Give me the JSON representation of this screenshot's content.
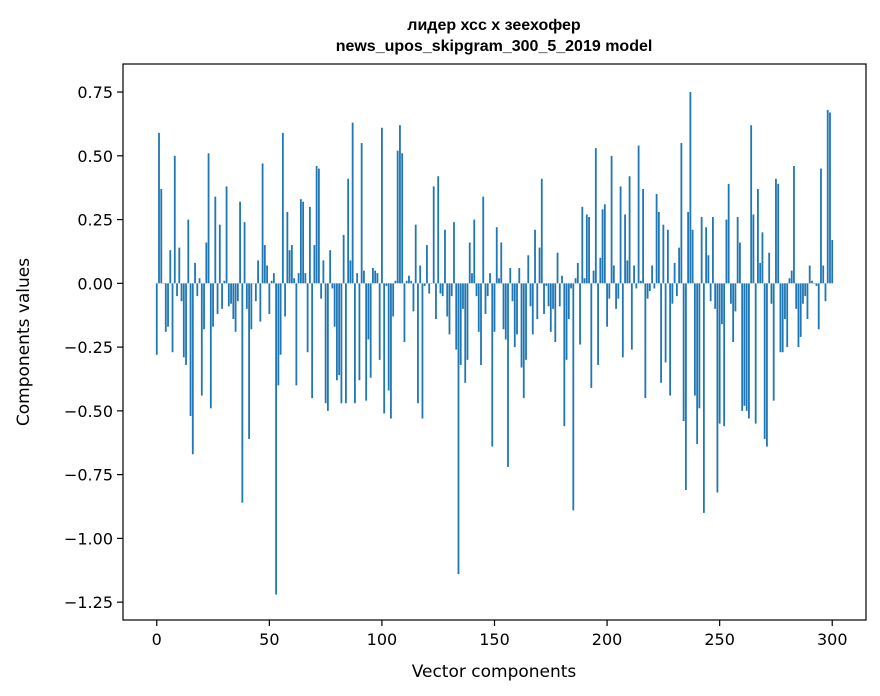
{
  "chart_data": {
    "type": "bar",
    "title": "лидер хсс х зеехофер",
    "subtitle": "news_upos_skipgram_300_5_2019 model",
    "xlabel": "Vector components",
    "ylabel": "Components values",
    "xlim": [
      -15,
      315
    ],
    "ylim": [
      -1.32,
      0.86
    ],
    "xticks": [
      0,
      50,
      100,
      150,
      200,
      250,
      300
    ],
    "yticks": [
      0.75,
      0.5,
      0.25,
      0.0,
      -0.25,
      -0.5,
      -0.75,
      -1.0,
      -1.25
    ],
    "ytick_labels": [
      "0.75",
      "0.50",
      "0.25",
      "0.00",
      "−0.25",
      "−0.50",
      "−0.75",
      "−1.00",
      "−1.25"
    ],
    "bar_color": "#1f77b4",
    "grid": false,
    "values": [
      -0.28,
      0.59,
      0.37,
      0.0,
      -0.19,
      -0.17,
      0.13,
      -0.27,
      0.5,
      -0.05,
      0.14,
      -0.07,
      -0.29,
      -0.32,
      0.25,
      -0.52,
      -0.67,
      0.08,
      -0.05,
      0.02,
      -0.44,
      -0.18,
      0.16,
      0.51,
      -0.49,
      -0.17,
      0.34,
      -0.12,
      0.23,
      -0.1,
      0.01,
      0.38,
      -0.09,
      -0.08,
      -0.14,
      -0.19,
      -0.07,
      0.32,
      -0.86,
      0.24,
      -0.1,
      -0.61,
      -0.18,
      0.0,
      -0.07,
      0.09,
      -0.15,
      0.47,
      0.15,
      0.07,
      -0.12,
      0.01,
      0.04,
      -1.22,
      -0.4,
      -0.28,
      0.59,
      -0.13,
      0.28,
      0.13,
      0.15,
      0.02,
      -0.4,
      0.04,
      0.33,
      0.32,
      0.04,
      -0.27,
      0.3,
      -0.45,
      0.15,
      0.46,
      0.45,
      -0.06,
      0.09,
      -0.47,
      -0.5,
      0.13,
      -0.02,
      -0.17,
      -0.38,
      -0.36,
      -0.47,
      0.19,
      -0.47,
      0.41,
      0.09,
      0.63,
      -0.47,
      0.04,
      -0.38,
      0.55,
      0.05,
      -0.46,
      -0.22,
      -0.37,
      0.06,
      0.05,
      0.04,
      -0.3,
      0.61,
      -0.51,
      -0.01,
      -0.42,
      -0.53,
      -0.13,
      0.01,
      0.52,
      0.62,
      0.51,
      -0.23,
      0.01,
      0.03,
      0.01,
      -0.11,
      0.23,
      -0.47,
      0.07,
      -0.53,
      -0.01,
      0.15,
      -0.04,
      0.0,
      0.38,
      -0.14,
      0.42,
      -0.04,
      -0.05,
      0.21,
      -0.13,
      -0.2,
      -0.05,
      0.24,
      -0.26,
      -1.14,
      -0.32,
      -0.1,
      -0.39,
      -0.3,
      0.16,
      0.04,
      0.25,
      -0.05,
      -0.19,
      -0.32,
      0.34,
      -0.12,
      -0.05,
      0.04,
      -0.64,
      -0.19,
      0.22,
      0.02,
      0.16,
      -0.18,
      -0.22,
      -0.72,
      0.06,
      -0.07,
      -0.25,
      -0.2,
      0.06,
      -0.33,
      -0.45,
      -0.3,
      0.11,
      -0.09,
      -0.2,
      0.21,
      -0.14,
      0.14,
      0.41,
      -0.12,
      -0.01,
      -0.09,
      -0.19,
      -0.1,
      -0.23,
      0.12,
      -0.09,
      0.03,
      -0.56,
      -0.3,
      -0.14,
      -0.02,
      -0.89,
      0.02,
      0.08,
      -0.24,
      0.3,
      0.02,
      0.27,
      0.26,
      -0.41,
      0.05,
      0.53,
      -0.32,
      0.1,
      0.29,
      0.31,
      -0.17,
      -0.06,
      0.5,
      0.07,
      -0.1,
      -0.06,
      0.38,
      -0.29,
      0.27,
      0.09,
      0.42,
      -0.26,
      0.07,
      -0.02,
      0.54,
      0.01,
      0.37,
      -0.45,
      -0.06,
      -0.03,
      0.07,
      -0.02,
      0.35,
      0.28,
      -0.39,
      0.23,
      -0.31,
      0.21,
      -0.44,
      -0.08,
      0.08,
      -0.05,
      0.14,
      0.55,
      -0.54,
      -0.81,
      0.28,
      0.75,
      0.21,
      -0.44,
      -0.63,
      -0.49,
      0.26,
      -0.9,
      0.22,
      0.11,
      -0.07,
      0.26,
      -0.1,
      -0.82,
      -0.55,
      -0.16,
      -0.56,
      0.25,
      0.39,
      -0.08,
      -0.23,
      -0.11,
      0.26,
      0.16,
      -0.5,
      -0.48,
      -0.5,
      -0.53,
      0.62,
      0.27,
      -0.55,
      0.37,
      0.08,
      0.2,
      -0.61,
      -0.64,
      0.12,
      -0.08,
      -0.46,
      0.41,
      0.39,
      -0.27,
      -0.27,
      -0.14,
      -0.25,
      0.02,
      0.05,
      0.46,
      -0.1,
      -0.25,
      -0.21,
      -0.08,
      -0.05,
      -0.14,
      0.07,
      0.01,
      0.0,
      -0.01,
      -0.18,
      0.45,
      0.07,
      -0.07,
      0.68,
      0.67,
      0.17
    ]
  }
}
